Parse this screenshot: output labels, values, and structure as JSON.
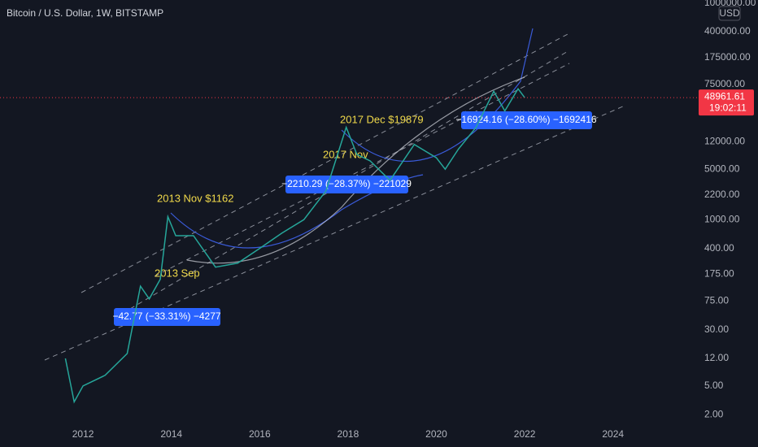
{
  "chart_data": {
    "type": "line",
    "title": "Bitcoin / U.S. Dollar, 1W, BITSTAMP",
    "currency": "USD",
    "x": [
      2011.6,
      2011.8,
      2012.0,
      2012.5,
      2013.0,
      2013.3,
      2013.5,
      2013.75,
      2013.92,
      2014.1,
      2014.5,
      2015.0,
      2015.5,
      2016.0,
      2016.5,
      2017.0,
      2017.5,
      2017.96,
      2018.2,
      2018.5,
      2018.95,
      2019.5,
      2020.0,
      2020.2,
      2020.5,
      2020.9,
      2021.3,
      2021.55,
      2021.85,
      2022.0
    ],
    "values": [
      12,
      3,
      5,
      7,
      14,
      120,
      80,
      150,
      1100,
      600,
      600,
      220,
      250,
      400,
      650,
      1000,
      2500,
      19000,
      8000,
      6500,
      3500,
      11000,
      7200,
      5000,
      9500,
      19000,
      60000,
      32000,
      65000,
      48961.61
    ],
    "color": "#26a69a",
    "log_scale": true,
    "grid": false,
    "xlim": [
      2010.12,
      2025.92
    ],
    "ylim": [
      1.47,
      1100000
    ],
    "xticks": [
      2012,
      2014,
      2016,
      2018,
      2020,
      2022,
      2024
    ],
    "yticks": [
      {
        "value": 1000000,
        "label": "1000000.00"
      },
      {
        "value": 400000,
        "label": "400000.00"
      },
      {
        "value": 175000,
        "label": "175000.00"
      },
      {
        "value": 75000,
        "label": "75000.00"
      },
      {
        "value": 12000,
        "label": "12000.00"
      },
      {
        "value": 5000,
        "label": "5000.00"
      },
      {
        "value": 2200,
        "label": "2200.00"
      },
      {
        "value": 1000,
        "label": "1000.00"
      },
      {
        "value": 400,
        "label": "400.00"
      },
      {
        "value": 175,
        "label": "175.00"
      },
      {
        "value": 75,
        "label": "75.00"
      },
      {
        "value": 30,
        "label": "30.00"
      },
      {
        "value": 12,
        "label": "12.00"
      },
      {
        "value": 5,
        "label": "5.00"
      },
      {
        "value": 2,
        "label": "2.00"
      }
    ],
    "last_price": 48961.61,
    "countdown": "19:02:11",
    "annotations": [
      "2013 Nov $1162",
      "2013 Sep",
      "2017 Dec $19879",
      "2017 Nov"
    ],
    "measurements": [
      "−42.77 (−33.31%) −4277",
      "−2210.29 (−28.37%) −221029",
      "−16924.16 (−28.60%) −1692416"
    ]
  }
}
